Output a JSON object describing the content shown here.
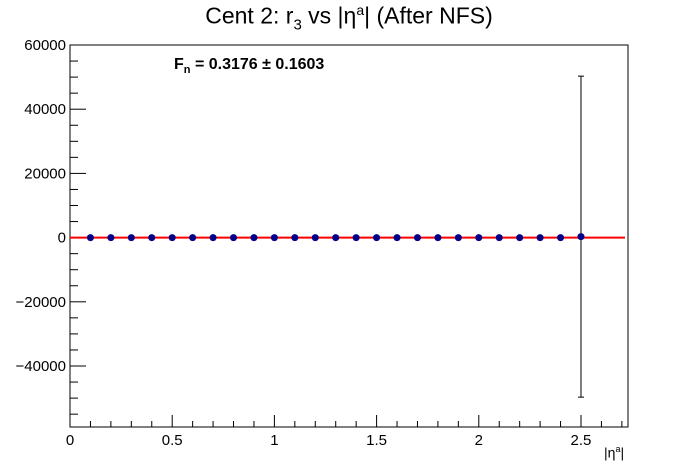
{
  "title": {
    "prefix": "Cent 2: r",
    "sub": "3",
    "mid": " vs |η",
    "sup": "a",
    "suffix": "| (After NFS)"
  },
  "annotation": {
    "prefix": "F",
    "sub": "n",
    "text": " = 0.3176   ± 0.1603"
  },
  "xlabel": {
    "prefix": "|η",
    "sup": "a",
    "suffix": "|"
  },
  "chart_data": {
    "type": "scatter",
    "xlim": [
      0,
      2.73
    ],
    "ylim": [
      -59000,
      60000
    ],
    "x_ticks": [
      0,
      0.5,
      1,
      1.5,
      2,
      2.5
    ],
    "x_tick_labels": [
      "0",
      "0.5",
      "1",
      "1.5",
      "2",
      "2.5"
    ],
    "y_ticks": [
      -40000,
      -20000,
      0,
      20000,
      40000,
      60000
    ],
    "y_tick_labels": [
      "−40000",
      "−20000",
      "0",
      "20000",
      "40000",
      "60000"
    ],
    "grid": false,
    "fit_line": {
      "y": 0,
      "color": "#ff0000"
    },
    "marker_color": "#00008b",
    "series": [
      {
        "x": [
          0.1,
          0.2,
          0.3,
          0.4,
          0.5,
          0.6,
          0.7,
          0.8,
          0.9,
          1.0,
          1.1,
          1.2,
          1.3,
          1.4,
          1.5,
          1.6,
          1.7,
          1.8,
          1.9,
          2.0,
          2.1,
          2.2,
          2.3,
          2.4,
          2.5
        ],
        "y": [
          0,
          0,
          0,
          0,
          0,
          0,
          0,
          0,
          0,
          0,
          0,
          0,
          0,
          0,
          0,
          0,
          0,
          0,
          0,
          0,
          0,
          0,
          0,
          0,
          300
        ],
        "yerr": [
          0,
          0,
          0,
          0,
          0,
          0,
          0,
          0,
          0,
          0,
          0,
          0,
          0,
          0,
          0,
          0,
          0,
          0,
          0,
          0,
          0,
          0,
          0,
          0,
          50000
        ]
      }
    ]
  }
}
